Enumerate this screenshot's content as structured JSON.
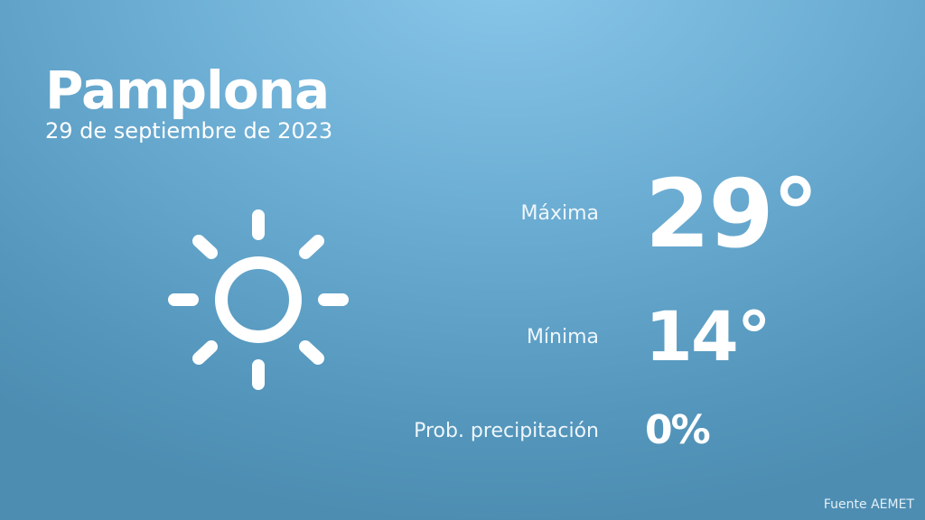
{
  "city": "Pamplona",
  "date": "29 de septiembre de 2023",
  "weather_icon": "sun-icon",
  "forecast": {
    "max_label": "Máxima",
    "max_value": "29°",
    "min_label": "Mínima",
    "min_value": "14°",
    "precip_label": "Prob. precipitación",
    "precip_value": "0%"
  },
  "source": "Fuente AEMET",
  "colors": {
    "background_top": "#8ac8ea",
    "background_bottom": "#4d8db2",
    "text": "#ffffff"
  }
}
